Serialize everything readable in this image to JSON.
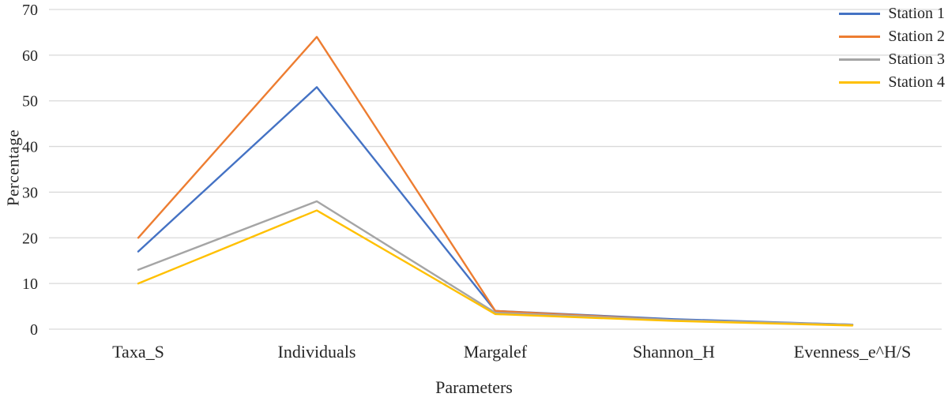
{
  "chart_data": {
    "type": "line",
    "title": "",
    "xlabel": "Parameters",
    "ylabel": "Percentage",
    "categories": [
      "Taxa_S",
      "Individuals",
      "Margalef",
      "Shannon_H",
      "Evenness_e^H/S"
    ],
    "series": [
      {
        "name": "Station 1",
        "color": "#4472c4",
        "values": [
          17,
          53,
          4.0,
          2.2,
          1.0
        ]
      },
      {
        "name": "Station 2",
        "color": "#ed7d31",
        "values": [
          20,
          64,
          4.0,
          2.0,
          0.9
        ]
      },
      {
        "name": "Station 3",
        "color": "#a5a5a5",
        "values": [
          13,
          28,
          3.6,
          2.0,
          1.0
        ]
      },
      {
        "name": "Station 4",
        "color": "#ffc000",
        "values": [
          10,
          26,
          3.3,
          1.8,
          0.8
        ]
      }
    ],
    "ylim": [
      0,
      70
    ],
    "ytick_step": 10,
    "yticks": [
      0,
      10,
      20,
      30,
      40,
      50,
      60,
      70
    ],
    "grid": true,
    "gridline_color": "#d9d9d9",
    "legend_position": "top-right",
    "text_color": "#262626",
    "background_color": "#ffffff"
  }
}
